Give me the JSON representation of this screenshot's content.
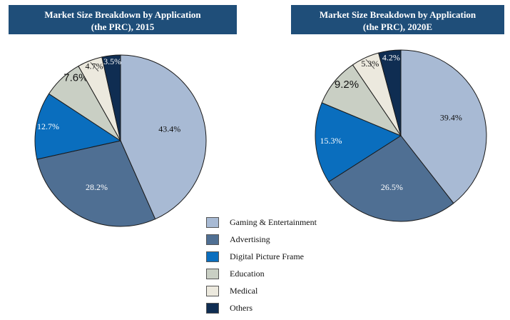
{
  "chart_data": [
    {
      "type": "pie",
      "title": "Market Size Breakdown by Application (the PRC), 2015",
      "title_lines": [
        "Market Size Breakdown by Application",
        "(the PRC), 2015"
      ],
      "categories": [
        "Gaming & Entertainment",
        "Advertising",
        "Digital Picture Frame",
        "Education",
        "Medical",
        "Others"
      ],
      "values": [
        43.4,
        28.2,
        12.7,
        7.6,
        4.7,
        3.5
      ],
      "data_labels": [
        "43.4%",
        "28.2%",
        "12.7%",
        "7.6%",
        "4.7%",
        "3.5%"
      ]
    },
    {
      "type": "pie",
      "title": "Market Size Breakdown by Application (the PRC), 2020E",
      "title_lines": [
        "Market Size Breakdown by Application",
        "(the PRC), 2020E"
      ],
      "categories": [
        "Gaming & Entertainment",
        "Advertising",
        "Digital Picture Frame",
        "Education",
        "Medical",
        "Others"
      ],
      "values": [
        39.4,
        26.5,
        15.3,
        9.2,
        5.3,
        4.2
      ],
      "data_labels": [
        "39.4%",
        "26.5%",
        "15.3%",
        "9.2%",
        "5.3%",
        "4.2%"
      ]
    }
  ],
  "legend": {
    "placement": "bottom-center",
    "items": [
      {
        "label": "Gaming & Entertainment",
        "color": "#a8bad4"
      },
      {
        "label": "Advertising",
        "color": "#4f6f93"
      },
      {
        "label": "Digital Picture Frame",
        "color": "#0a6ebe"
      },
      {
        "label": "Education",
        "color": "#c9cfc4"
      },
      {
        "label": "Medical",
        "color": "#ece9de"
      },
      {
        "label": "Others",
        "color": "#0f2d52"
      }
    ]
  },
  "colors": {
    "title_bg": "#1f4e79",
    "title_text": "#ffffff",
    "slice_border": "#1a1a1a"
  }
}
